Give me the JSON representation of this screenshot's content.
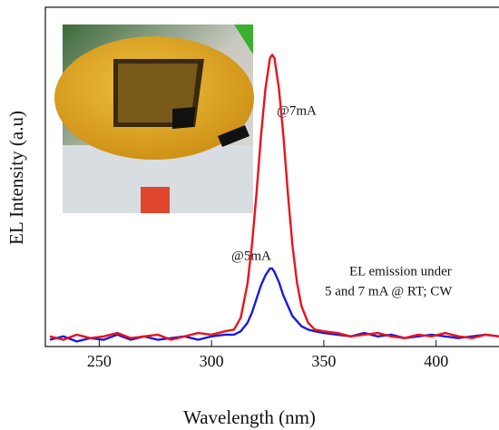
{
  "chart_data": {
    "type": "line",
    "x_label": "Wavelength (nm)",
    "y_label": "EL Intensity (a.u)",
    "xlim": [
      226,
      428
    ],
    "ylim": [
      0,
      1
    ],
    "xticks": [
      250,
      300,
      350,
      400
    ],
    "x": [
      228,
      234,
      240,
      246,
      252,
      258,
      264,
      270,
      276,
      282,
      288,
      294,
      300,
      306,
      310,
      313,
      316,
      318,
      320,
      322,
      324,
      326,
      327,
      328,
      330,
      332,
      334,
      336,
      338,
      340,
      343,
      346,
      350,
      356,
      362,
      368,
      374,
      380,
      386,
      392,
      398,
      404,
      410,
      416,
      422,
      428
    ],
    "series": [
      {
        "name": "@7mA",
        "color": "#e8141c",
        "values": [
          0.03,
          0.02,
          0.035,
          0.025,
          0.03,
          0.04,
          0.025,
          0.03,
          0.035,
          0.02,
          0.03,
          0.04,
          0.035,
          0.045,
          0.05,
          0.085,
          0.185,
          0.3,
          0.45,
          0.62,
          0.76,
          0.85,
          0.86,
          0.85,
          0.76,
          0.62,
          0.45,
          0.3,
          0.19,
          0.12,
          0.07,
          0.05,
          0.045,
          0.04,
          0.03,
          0.035,
          0.04,
          0.03,
          0.025,
          0.035,
          0.03,
          0.04,
          0.03,
          0.025,
          0.035,
          0.03
        ]
      },
      {
        "name": "@5mA",
        "color": "#1a1ae0",
        "values": [
          0.02,
          0.03,
          0.015,
          0.025,
          0.02,
          0.035,
          0.02,
          0.03,
          0.02,
          0.025,
          0.03,
          0.02,
          0.03,
          0.035,
          0.035,
          0.045,
          0.07,
          0.1,
          0.14,
          0.18,
          0.21,
          0.23,
          0.23,
          0.22,
          0.19,
          0.15,
          0.12,
          0.09,
          0.075,
          0.06,
          0.05,
          0.045,
          0.04,
          0.035,
          0.03,
          0.04,
          0.03,
          0.035,
          0.025,
          0.03,
          0.035,
          0.03,
          0.025,
          0.03,
          0.035,
          0.03
        ]
      }
    ],
    "annotations": [
      "EL emission under",
      "5 and 7 mA  @ RT; CW"
    ]
  }
}
